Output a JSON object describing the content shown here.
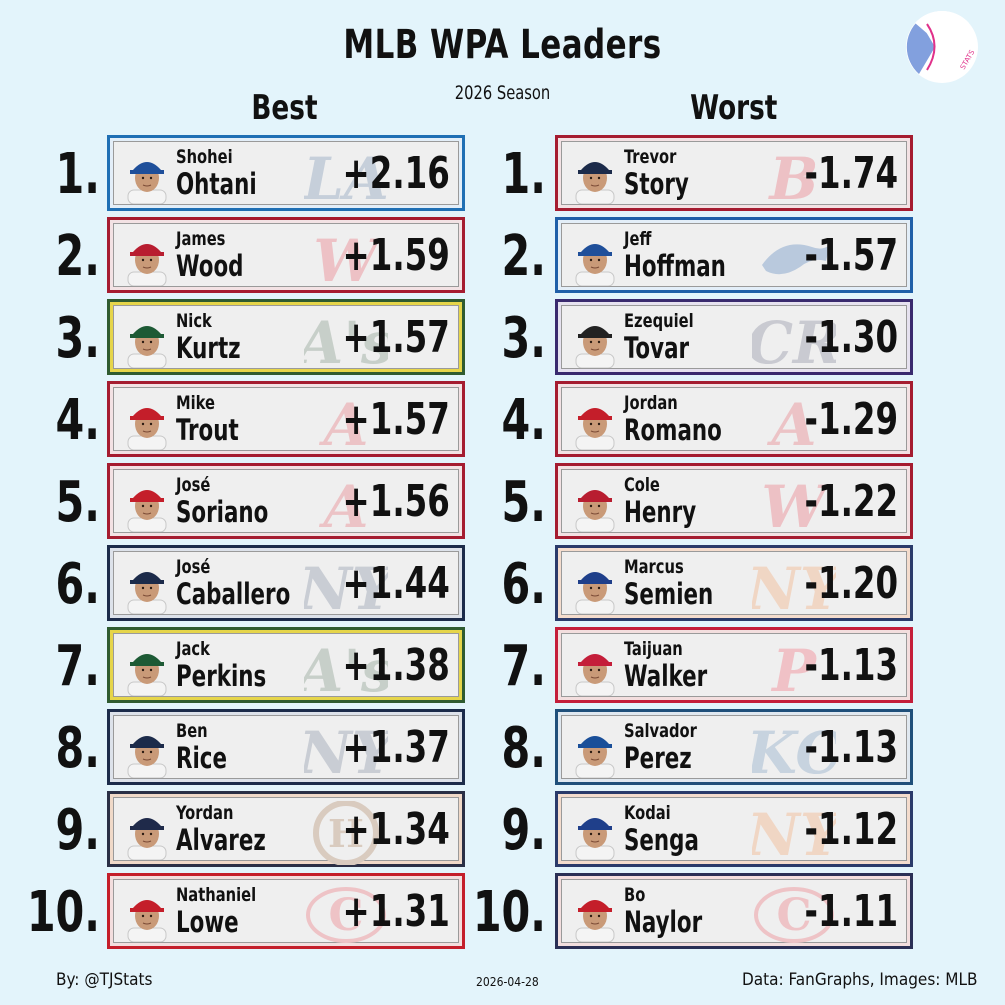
{
  "title": "MLB WPA Leaders",
  "subtitle": "2026 Season",
  "logo_text": "STATS",
  "best_label": "Best",
  "worst_label": "Worst",
  "best": [
    {
      "rank": "1.",
      "first": "Shohei",
      "last": "Ohtani",
      "value": "+2.16",
      "team": "LA",
      "c1": "#1f6fb4",
      "c2": "#e3eef8",
      "cap": "#1f4f9a",
      "logo_color": "#c6cfda"
    },
    {
      "rank": "2.",
      "first": "James",
      "last": "Wood",
      "value": "+1.59",
      "team": "W",
      "c1": "#a51c30",
      "c2": "#f3e2e4",
      "cap": "#b81d30",
      "logo_color": "#edc1c5"
    },
    {
      "rank": "3.",
      "first": "Nick",
      "last": "Kurtz",
      "value": "+1.57",
      "team": "A's",
      "c1": "#2f5b30",
      "c2": "#e6d54a",
      "cap": "#1d5a35",
      "logo_color": "#c7cfc9"
    },
    {
      "rank": "4.",
      "first": "Mike",
      "last": "Trout",
      "value": "+1.57",
      "team": "A",
      "c1": "#a51c30",
      "c2": "#f3e2e4",
      "cap": "#c41e2a",
      "logo_color": "#ecc3c6"
    },
    {
      "rank": "5.",
      "first": "José",
      "last": "Soriano",
      "value": "+1.56",
      "team": "A",
      "c1": "#a51c30",
      "c2": "#f3e2e4",
      "cap": "#c41e2a",
      "logo_color": "#ecc3c6"
    },
    {
      "rank": "6.",
      "first": "José",
      "last": "Caballero",
      "value": "+1.44",
      "team": "NY",
      "c1": "#1c2b4a",
      "c2": "#dde2ea",
      "cap": "#1c2b4a",
      "logo_color": "#c9cdd4"
    },
    {
      "rank": "7.",
      "first": "Jack",
      "last": "Perkins",
      "value": "+1.38",
      "team": "A's",
      "c1": "#2f5b30",
      "c2": "#e6d54a",
      "cap": "#1d5a35",
      "logo_color": "#c7cfc9"
    },
    {
      "rank": "8.",
      "first": "Ben",
      "last": "Rice",
      "value": "+1.37",
      "team": "NY",
      "c1": "#1c2b4a",
      "c2": "#dde2ea",
      "cap": "#1c2b4a",
      "logo_color": "#c9cdd4"
    },
    {
      "rank": "9.",
      "first": "Yordan",
      "last": "Alvarez",
      "value": "+1.34",
      "team": "H",
      "c1": "#2a2f45",
      "c2": "#f0d9c8",
      "cap": "#1f2a4a",
      "logo_color": "#d9cbbf"
    },
    {
      "rank": "10.",
      "first": "Nathaniel",
      "last": "Lowe",
      "value": "+1.31",
      "team": "C",
      "c1": "#c41e2a",
      "c2": "#f3dede",
      "cap": "#c41e2a",
      "logo_color": "#eec3c6"
    }
  ],
  "worst": [
    {
      "rank": "1.",
      "first": "Trevor",
      "last": "Story",
      "value": "-1.74",
      "team": "B",
      "c1": "#a51c30",
      "c2": "#f3e2e4",
      "cap": "#1c2b4a",
      "logo_color": "#edc1c5"
    },
    {
      "rank": "2.",
      "first": "Jeff",
      "last": "Hoffman",
      "value": "-1.57",
      "team": "TOR",
      "c1": "#1f5fa8",
      "c2": "#e3eef8",
      "cap": "#1f4f9a",
      "logo_color": "#b9c9dd"
    },
    {
      "rank": "3.",
      "first": "Ezequiel",
      "last": "Tovar",
      "value": "-1.30",
      "team": "CR",
      "c1": "#3a2a6e",
      "c2": "#e6e2ef",
      "cap": "#222222",
      "logo_color": "#c9cad1"
    },
    {
      "rank": "4.",
      "first": "Jordan",
      "last": "Romano",
      "value": "-1.29",
      "team": "A",
      "c1": "#a51c30",
      "c2": "#f3e2e4",
      "cap": "#c41e2a",
      "logo_color": "#ecc3c6"
    },
    {
      "rank": "5.",
      "first": "Cole",
      "last": "Henry",
      "value": "-1.22",
      "team": "W",
      "c1": "#a51c30",
      "c2": "#f3e2e4",
      "cap": "#b81d30",
      "logo_color": "#edc1c5"
    },
    {
      "rank": "6.",
      "first": "Marcus",
      "last": "Semien",
      "value": "-1.20",
      "team": "NY",
      "c1": "#2a3a6a",
      "c2": "#f4dccd",
      "cap": "#1f3f8a",
      "logo_color": "#f0d6c4"
    },
    {
      "rank": "7.",
      "first": "Taijuan",
      "last": "Walker",
      "value": "-1.13",
      "team": "P",
      "c1": "#c41e3a",
      "c2": "#f3dede",
      "cap": "#c41e3a",
      "logo_color": "#f0c1c6"
    },
    {
      "rank": "8.",
      "first": "Salvador",
      "last": "Perez",
      "value": "-1.13",
      "team": "KC",
      "c1": "#1f4f7a",
      "c2": "#e0e8f0",
      "cap": "#1a4f99",
      "logo_color": "#c7d3df"
    },
    {
      "rank": "9.",
      "first": "Kodai",
      "last": "Senga",
      "value": "-1.12",
      "team": "NY",
      "c1": "#2a3a6a",
      "c2": "#f4dccd",
      "cap": "#1f3f8a",
      "logo_color": "#f0d6c4"
    },
    {
      "rank": "10.",
      "first": "Bo",
      "last": "Naylor",
      "value": "-1.11",
      "team": "C",
      "c1": "#2a2f55",
      "c2": "#f3dede",
      "cap": "#c41e2a",
      "logo_color": "#eec3c6"
    }
  ],
  "footer": {
    "by": "By: @TJStats",
    "date": "2026-04-28",
    "source": "Data: FanGraphs, Images: MLB"
  }
}
